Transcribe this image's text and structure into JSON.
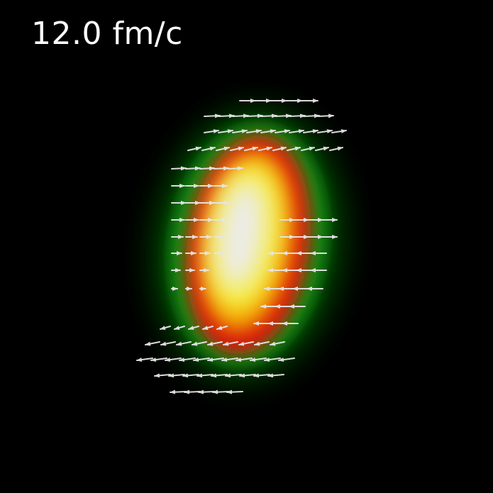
{
  "overlay": {
    "time_label": "12.0 fm/c"
  },
  "colors": {
    "background": "#000000",
    "label": "#ffffff",
    "arrow": "#e6e6e6",
    "density_stops": [
      "#000000",
      "#0a6d0a",
      "#1b9a12",
      "#d01010",
      "#f0a000",
      "#f7f030",
      "#ececec"
    ]
  },
  "icons": {
    "vector_glyph": "arrow-icon"
  }
}
